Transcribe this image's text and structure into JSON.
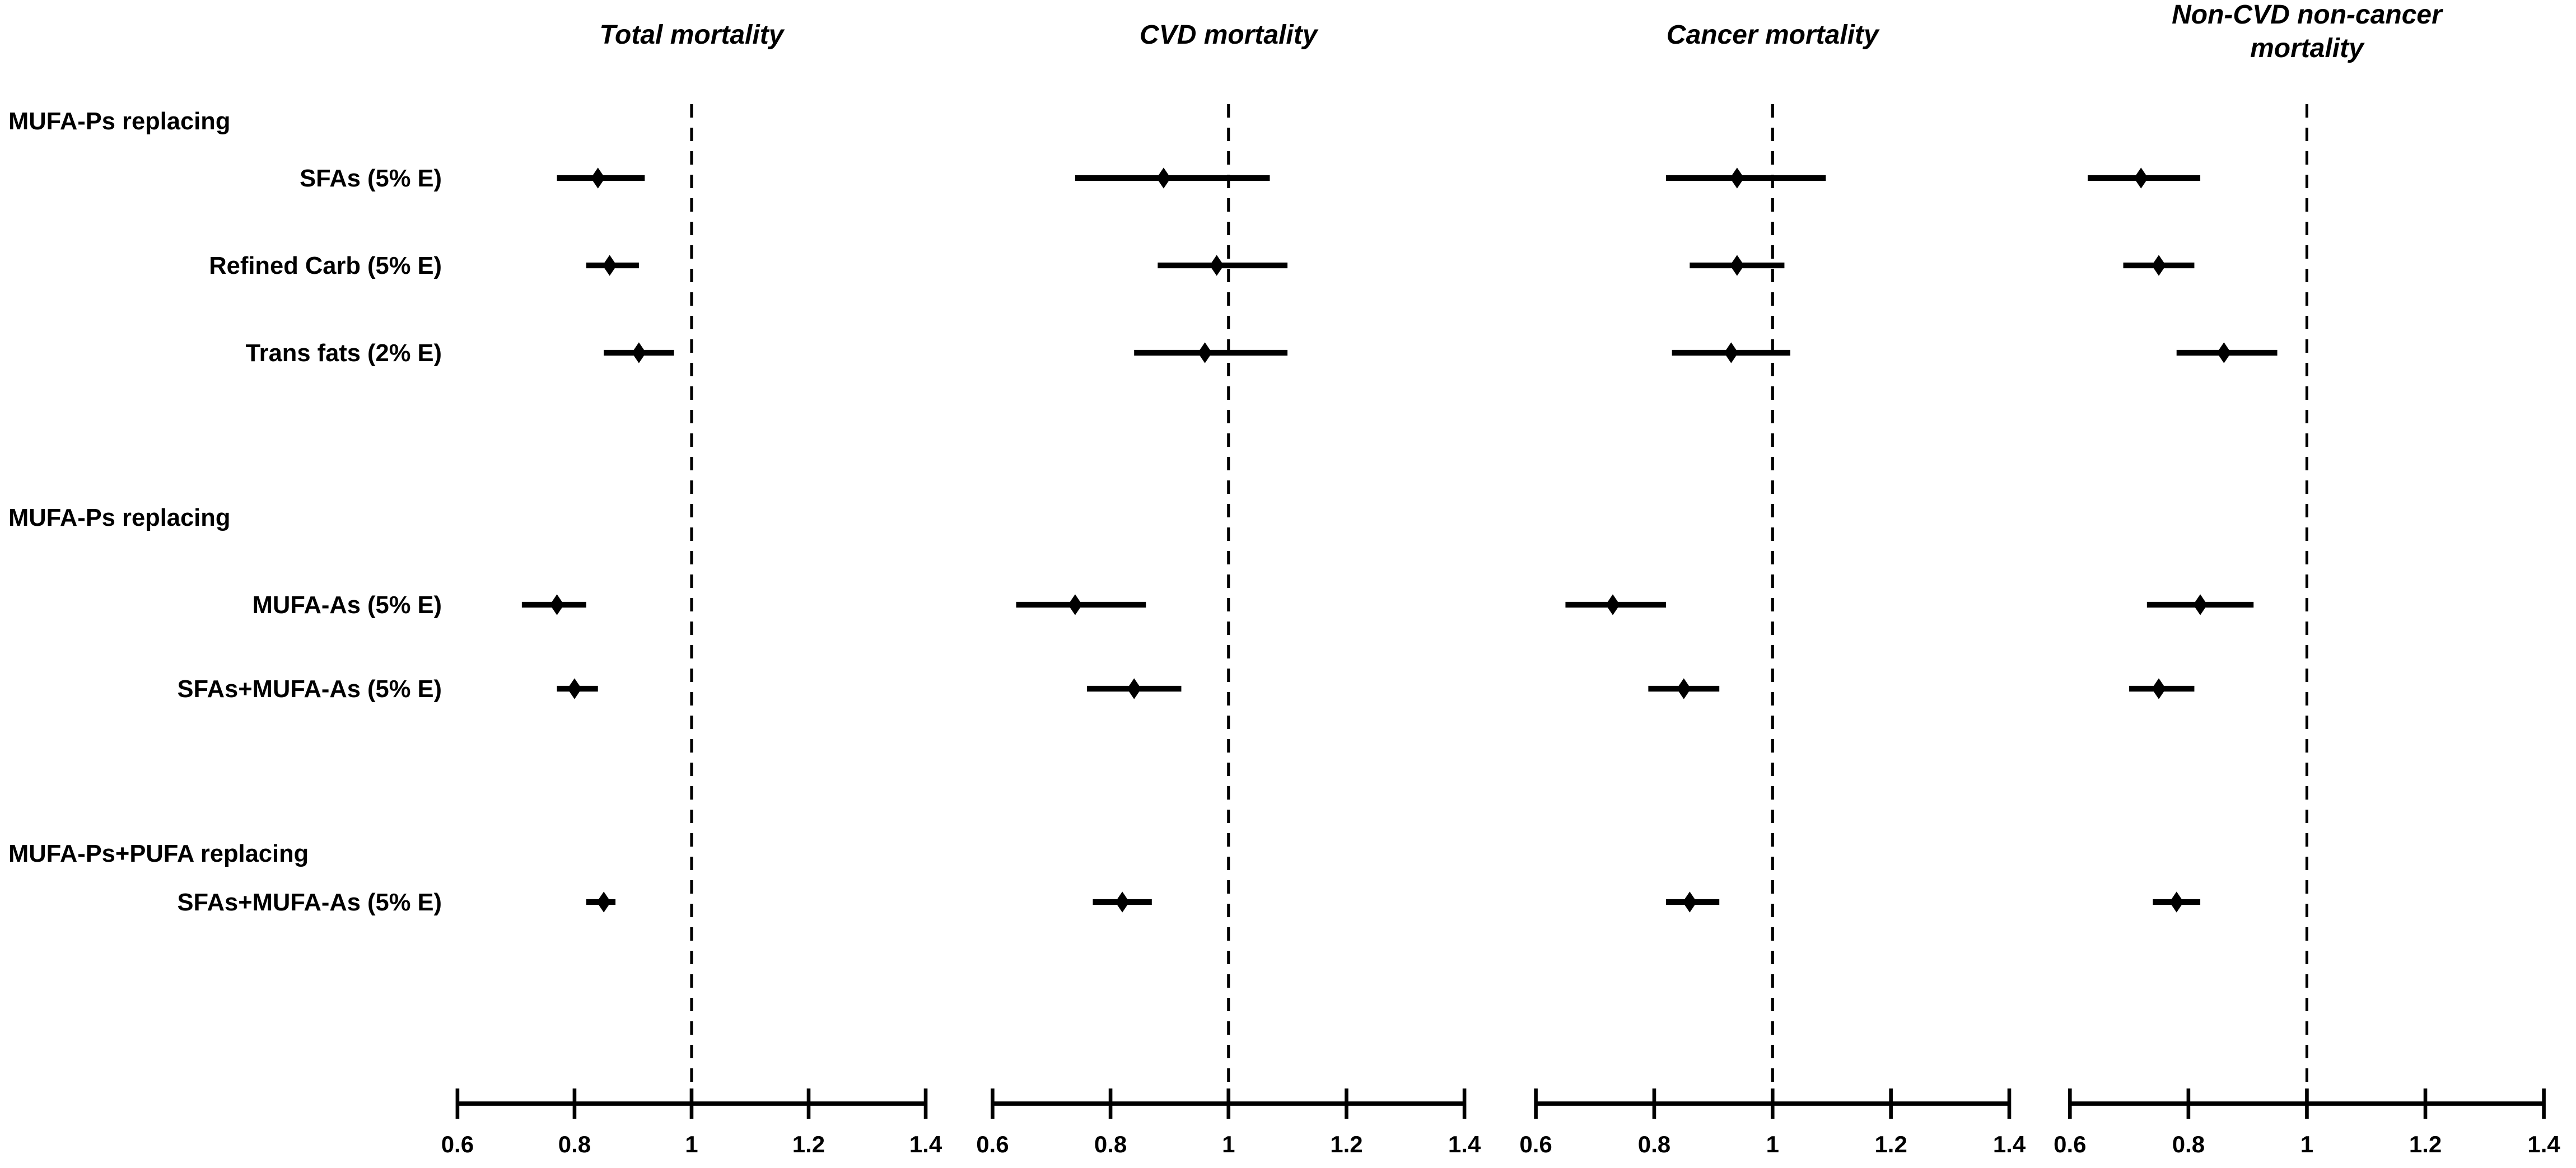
{
  "figure": {
    "kind": "forest-plot",
    "background_color": "#ffffff",
    "ink_color": "#000000"
  },
  "chart_data": {
    "type": "scatter",
    "subtype": "forest-plot",
    "x_axis": {
      "range": [
        0.6,
        1.4
      ],
      "ticks": [
        0.6,
        0.8,
        1.0,
        1.2,
        1.4
      ],
      "tick_labels": [
        "0.6",
        "0.8",
        "1",
        "1.2",
        "1.4"
      ],
      "reference_line": 1.0,
      "reference_line_style": "dashed",
      "grid": false
    },
    "row_labels": [
      {
        "kind": "group",
        "label": "MUFA-Ps replacing"
      },
      {
        "kind": "item",
        "label": "SFAs (5% E)"
      },
      {
        "kind": "item",
        "label": "Refined Carb (5% E)"
      },
      {
        "kind": "item",
        "label": "Trans fats (2% E)"
      },
      {
        "kind": "group",
        "label": "MUFA-Ps replacing"
      },
      {
        "kind": "item",
        "label": "MUFA-As (5% E)"
      },
      {
        "kind": "item",
        "label": "SFAs+MUFA-As (5% E)"
      },
      {
        "kind": "group",
        "label": "MUFA-Ps+PUFA replacing"
      },
      {
        "kind": "item",
        "label": "SFAs+MUFA-As (5% E)"
      }
    ],
    "panels": [
      {
        "title_lines": [
          "Total mortality"
        ],
        "estimates": [
          {
            "label": "SFAs (5% E)",
            "hr": 0.84,
            "ci_low": 0.77,
            "ci_high": 0.92
          },
          {
            "label": "Refined Carb (5% E)",
            "hr": 0.86,
            "ci_low": 0.82,
            "ci_high": 0.91
          },
          {
            "label": "Trans fats (2% E)",
            "hr": 0.91,
            "ci_low": 0.85,
            "ci_high": 0.97
          },
          {
            "label": "MUFA-As (5% E)",
            "hr": 0.77,
            "ci_low": 0.71,
            "ci_high": 0.82
          },
          {
            "label": "SFAs+MUFA-As (5% E)",
            "hr": 0.8,
            "ci_low": 0.77,
            "ci_high": 0.84
          },
          {
            "label": "SFAs+MUFA-As (5% E)",
            "hr": 0.85,
            "ci_low": 0.82,
            "ci_high": 0.87
          }
        ]
      },
      {
        "title_lines": [
          "CVD mortality"
        ],
        "estimates": [
          {
            "label": "SFAs (5% E)",
            "hr": 0.89,
            "ci_low": 0.74,
            "ci_high": 1.07
          },
          {
            "label": "Refined Carb (5% E)",
            "hr": 0.98,
            "ci_low": 0.88,
            "ci_high": 1.1
          },
          {
            "label": "Trans fats (2% E)",
            "hr": 0.96,
            "ci_low": 0.84,
            "ci_high": 1.1
          },
          {
            "label": "MUFA-As (5% E)",
            "hr": 0.74,
            "ci_low": 0.64,
            "ci_high": 0.86
          },
          {
            "label": "SFAs+MUFA-As (5% E)",
            "hr": 0.84,
            "ci_low": 0.76,
            "ci_high": 0.92
          },
          {
            "label": "SFAs+MUFA-As (5% E)",
            "hr": 0.82,
            "ci_low": 0.77,
            "ci_high": 0.87
          }
        ]
      },
      {
        "title_lines": [
          "Cancer mortality"
        ],
        "estimates": [
          {
            "label": "SFAs (5% E)",
            "hr": 0.94,
            "ci_low": 0.82,
            "ci_high": 1.09
          },
          {
            "label": "Refined Carb (5% E)",
            "hr": 0.94,
            "ci_low": 0.86,
            "ci_high": 1.02
          },
          {
            "label": "Trans fats (2% E)",
            "hr": 0.93,
            "ci_low": 0.83,
            "ci_high": 1.03
          },
          {
            "label": "MUFA-As (5% E)",
            "hr": 0.73,
            "ci_low": 0.65,
            "ci_high": 0.82
          },
          {
            "label": "SFAs+MUFA-As (5% E)",
            "hr": 0.85,
            "ci_low": 0.79,
            "ci_high": 0.91
          },
          {
            "label": "SFAs+MUFA-As (5% E)",
            "hr": 0.86,
            "ci_low": 0.82,
            "ci_high": 0.91
          }
        ]
      },
      {
        "title_lines": [
          "Non-CVD non-cancer",
          "mortality"
        ],
        "estimates": [
          {
            "label": "SFAs (5% E)",
            "hr": 0.72,
            "ci_low": 0.63,
            "ci_high": 0.82
          },
          {
            "label": "Refined Carb (5% E)",
            "hr": 0.75,
            "ci_low": 0.69,
            "ci_high": 0.81
          },
          {
            "label": "Trans fats (2% E)",
            "hr": 0.86,
            "ci_low": 0.78,
            "ci_high": 0.95
          },
          {
            "label": "MUFA-As (5% E)",
            "hr": 0.82,
            "ci_low": 0.73,
            "ci_high": 0.91
          },
          {
            "label": "SFAs+MUFA-As (5% E)",
            "hr": 0.75,
            "ci_low": 0.7,
            "ci_high": 0.81
          },
          {
            "label": "SFAs+MUFA-As (5% E)",
            "hr": 0.78,
            "ci_low": 0.74,
            "ci_high": 0.82
          }
        ]
      }
    ]
  }
}
